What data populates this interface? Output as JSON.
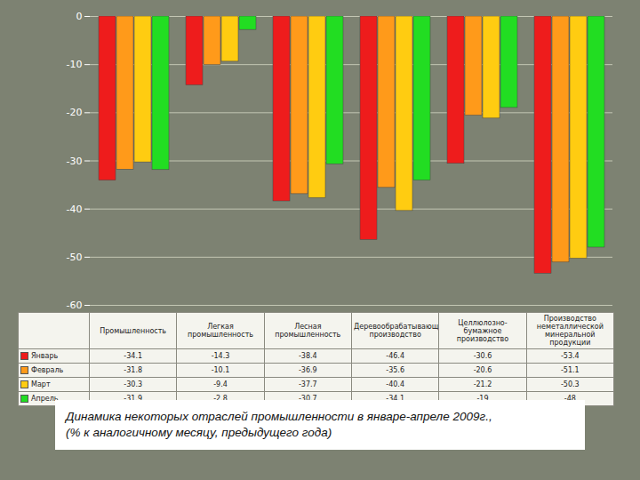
{
  "chart_data": {
    "type": "bar",
    "title": "Динамика некоторых отраслей промышленности в январе-апреле 2009г.,",
    "subtitle": "(% к аналогичному месяцу, предыдущего года)",
    "categories": [
      "Промышленность",
      "Легкая промышленность",
      "Лесная промышленность",
      "Деревообрабатывающее производство",
      "Целлюлозно-бумажное производство",
      "Производство неметаллической минеральной продукции"
    ],
    "series": [
      {
        "name": "Январь",
        "color": "#ee1c1c",
        "values": [
          -34.1,
          -14.3,
          -38.4,
          -46.4,
          -30.6,
          -53.4
        ]
      },
      {
        "name": "Февраль",
        "color": "#ff9a1a",
        "values": [
          -31.8,
          -10.1,
          -36.9,
          -35.6,
          -20.6,
          -51.1
        ]
      },
      {
        "name": "Март",
        "color": "#ffcc11",
        "values": [
          -30.3,
          -9.4,
          -37.7,
          -40.4,
          -21.2,
          -50.3
        ]
      },
      {
        "name": "Апрель",
        "color": "#22dd22",
        "values": [
          -31.9,
          -2.8,
          -30.7,
          -34.1,
          -19.0,
          -48.0
        ]
      }
    ],
    "ylim": [
      -60,
      0
    ],
    "yticks": [
      -60,
      -50,
      -40,
      -30,
      -20,
      -10,
      0
    ],
    "grid": true
  }
}
